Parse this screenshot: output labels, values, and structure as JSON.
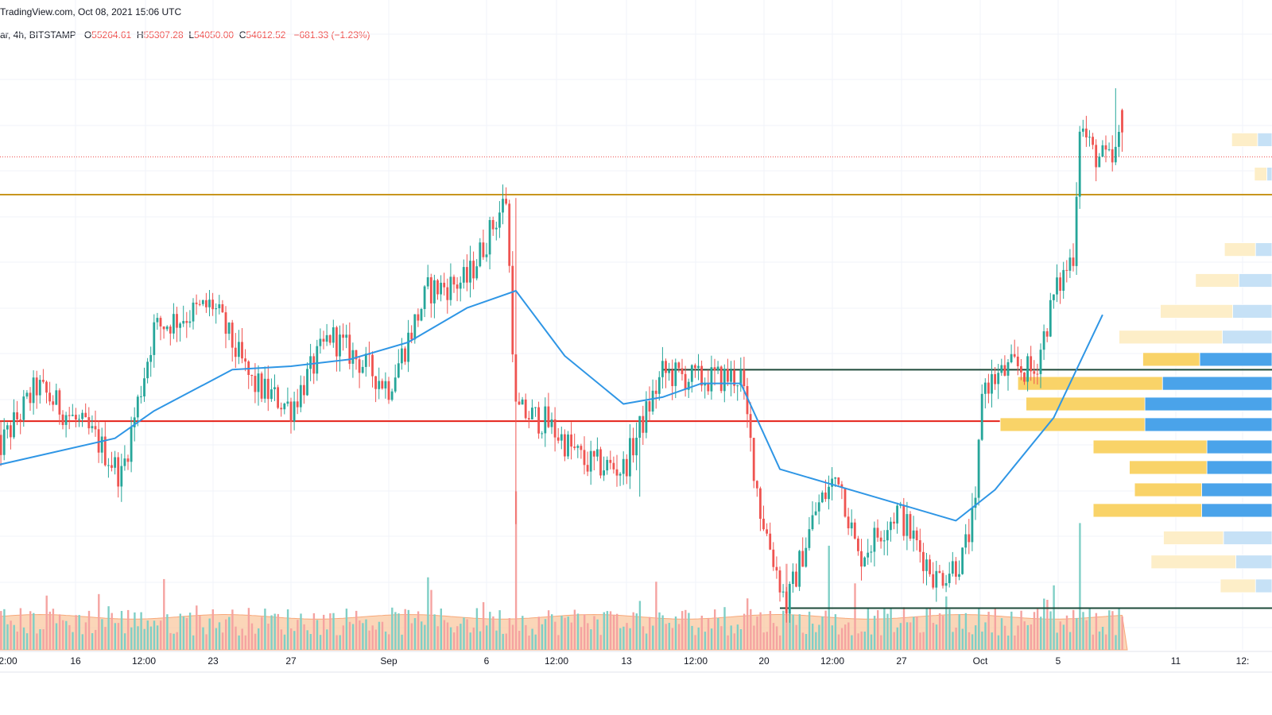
{
  "header": {
    "line1": "TradingView.com, Oct 08, 2021 15:06 UTC",
    "line2_prefix": "ar, 4h, BITSTAMP",
    "open_label": "O",
    "open": "55264.61",
    "high_label": "H",
    "high": "55307.28",
    "low_label": "L",
    "low": "54050.00",
    "close_label": "C",
    "close": "54612.52",
    "change": "−681.33 (−1.23%)"
  },
  "chart_data": {
    "type": "candlestick",
    "title": "",
    "timeframe": "4h",
    "exchange": "BITSTAMP",
    "x_tick_labels": [
      "2:00",
      "16",
      "12:00",
      "23",
      "27",
      "Sep",
      "6",
      "12:00",
      "13",
      "12:00",
      "20",
      "12:00",
      "27",
      "Oct",
      "5",
      "11",
      "12:"
    ],
    "last_candle": {
      "open": 55264.61,
      "high": 55307.28,
      "low": 54050.0,
      "close": 54612.52,
      "change": -681.33,
      "change_pct": -1.23
    },
    "price_path_keypoints": [
      {
        "date": "2021-08-11 20:00",
        "price": 45200
      },
      {
        "date": "2021-08-14 00:00",
        "price": 47200
      },
      {
        "date": "2021-08-17 00:00",
        "price": 45700
      },
      {
        "date": "2021-08-18 08:00",
        "price": 44600
      },
      {
        "date": "2021-08-20 00:00",
        "price": 48900
      },
      {
        "date": "2021-08-23 00:00",
        "price": 49600
      },
      {
        "date": "2021-08-25 00:00",
        "price": 47300
      },
      {
        "date": "2021-08-27 00:00",
        "price": 46600
      },
      {
        "date": "2021-08-29 00:00",
        "price": 48700
      },
      {
        "date": "2021-09-01 00:00",
        "price": 47200
      },
      {
        "date": "2021-09-03 00:00",
        "price": 50000
      },
      {
        "date": "2021-09-05 00:00",
        "price": 50300
      },
      {
        "date": "2021-09-07 00:00",
        "price": 52700
      },
      {
        "date": "2021-09-07 12:00",
        "price": 46500
      },
      {
        "date": "2021-09-09 00:00",
        "price": 46200
      },
      {
        "date": "2021-09-11 00:00",
        "price": 45000
      },
      {
        "date": "2021-09-13 00:00",
        "price": 44800
      },
      {
        "date": "2021-09-15 00:00",
        "price": 47600
      },
      {
        "date": "2021-09-17 00:00",
        "price": 47400
      },
      {
        "date": "2021-09-19 00:00",
        "price": 47500
      },
      {
        "date": "2021-09-20 00:00",
        "price": 43600
      },
      {
        "date": "2021-09-21 08:00",
        "price": 40800
      },
      {
        "date": "2021-09-22 20:00",
        "price": 43600
      },
      {
        "date": "2021-09-24 00:00",
        "price": 44700
      },
      {
        "date": "2021-09-25 00:00",
        "price": 42200
      },
      {
        "date": "2021-09-27 00:00",
        "price": 43600
      },
      {
        "date": "2021-09-29 00:00",
        "price": 41600
      },
      {
        "date": "2021-09-30 08:00",
        "price": 42200
      },
      {
        "date": "2021-10-01 00:00",
        "price": 43600
      },
      {
        "date": "2021-10-01 08:00",
        "price": 47200
      },
      {
        "date": "2021-10-03 00:00",
        "price": 47800
      },
      {
        "date": "2021-10-04 00:00",
        "price": 47600
      },
      {
        "date": "2021-10-05 00:00",
        "price": 49800
      },
      {
        "date": "2021-10-06 00:00",
        "price": 51100
      },
      {
        "date": "2021-10-06 08:00",
        "price": 54900
      },
      {
        "date": "2021-10-07 00:00",
        "price": 54000
      },
      {
        "date": "2021-10-08 00:00",
        "price": 53700
      },
      {
        "date": "2021-10-08 12:00",
        "price": 54612
      }
    ],
    "moving_average": {
      "color": "#2f96e5",
      "points": [
        {
          "date": "2021-08-11 20:00",
          "price": 44900
        },
        {
          "date": "2021-08-18 00:00",
          "price": 45700
        },
        {
          "date": "2021-08-20 00:00",
          "price": 46500
        },
        {
          "date": "2021-08-24 00:00",
          "price": 47700
        },
        {
          "date": "2021-08-27 00:00",
          "price": 47800
        },
        {
          "date": "2021-08-30 00:00",
          "price": 48000
        },
        {
          "date": "2021-09-02 00:00",
          "price": 48500
        },
        {
          "date": "2021-09-05 00:00",
          "price": 49500
        },
        {
          "date": "2021-09-07 12:00",
          "price": 50000
        },
        {
          "date": "2021-09-10 00:00",
          "price": 48100
        },
        {
          "date": "2021-09-13 00:00",
          "price": 46700
        },
        {
          "date": "2021-09-15 00:00",
          "price": 46900
        },
        {
          "date": "2021-09-17 00:00",
          "price": 47300
        },
        {
          "date": "2021-09-19 00:00",
          "price": 47300
        },
        {
          "date": "2021-09-21 00:00",
          "price": 44800
        },
        {
          "date": "2021-09-24 00:00",
          "price": 44300
        },
        {
          "date": "2021-09-27 00:00",
          "price": 43800
        },
        {
          "date": "2021-09-30 00:00",
          "price": 43300
        },
        {
          "date": "2021-10-02 00:00",
          "price": 44200
        },
        {
          "date": "2021-10-05 00:00",
          "price": 46300
        },
        {
          "date": "2021-10-07 12:00",
          "price": 49300
        }
      ]
    },
    "horizontal_levels": [
      {
        "price": 52800,
        "color": "#c8961e",
        "from": "left-edge"
      },
      {
        "price": 47700,
        "color": "#1d4a3a",
        "from": "2021-09-15 00:00"
      },
      {
        "price": 46200,
        "color": "#e5221a",
        "from": "left-edge"
      },
      {
        "price": 40750,
        "color": "#1d4a3a",
        "from": "2021-09-21 00:00"
      }
    ],
    "current_price_line": {
      "price": 53900,
      "color": "#ef5350",
      "style": "dotted"
    },
    "volume_profile": [
      {
        "price": 54400,
        "up": 25,
        "down": 14,
        "faded": true
      },
      {
        "price": 53400,
        "up": 12,
        "down": 5,
        "faded": true
      },
      {
        "price": 51200,
        "up": 30,
        "down": 16,
        "faded": true
      },
      {
        "price": 50300,
        "up": 42,
        "down": 32,
        "faded": true
      },
      {
        "price": 49400,
        "up": 70,
        "down": 38,
        "faded": true
      },
      {
        "price": 48650,
        "up": 100,
        "down": 48,
        "faded": true
      },
      {
        "price": 48000,
        "up": 55,
        "down": 70,
        "faded": false
      },
      {
        "price": 47300,
        "up": 140,
        "down": 106,
        "faded": false
      },
      {
        "price": 46700,
        "up": 115,
        "down": 123,
        "faded": false
      },
      {
        "price": 46100,
        "up": 140,
        "down": 123,
        "faded": false
      },
      {
        "price": 45450,
        "up": 110,
        "down": 63,
        "faded": false
      },
      {
        "price": 44850,
        "up": 75,
        "down": 63,
        "faded": false
      },
      {
        "price": 44200,
        "up": 65,
        "down": 68,
        "faded": false
      },
      {
        "price": 43600,
        "up": 105,
        "down": 68,
        "faded": false
      },
      {
        "price": 42800,
        "up": 58,
        "down": 47,
        "faded": true
      },
      {
        "price": 42100,
        "up": 82,
        "down": 35,
        "faded": true
      },
      {
        "price": 41400,
        "up": 34,
        "down": 16,
        "faded": true
      }
    ],
    "volume_profile_colors": {
      "up": "#f9d368",
      "down": "#4aa3ea",
      "up_faded": "#fdeec8",
      "down_faded": "#c6e1f6"
    },
    "volume_bars": {
      "typical": 3.5,
      "spikes": [
        {
          "date": "2021-09-07 12:00",
          "value": 17.5
        },
        {
          "date": "2021-09-21 08:00",
          "value": 9.5
        },
        {
          "date": "2021-09-23 12:00",
          "value": 11.5
        },
        {
          "date": "2021-10-06 08:00",
          "value": 14.0
        }
      ]
    },
    "colors": {
      "up": "#26a69a",
      "down": "#ef5350",
      "grid": "#f0f3fa",
      "volume_ma": "#f9c49a"
    }
  }
}
